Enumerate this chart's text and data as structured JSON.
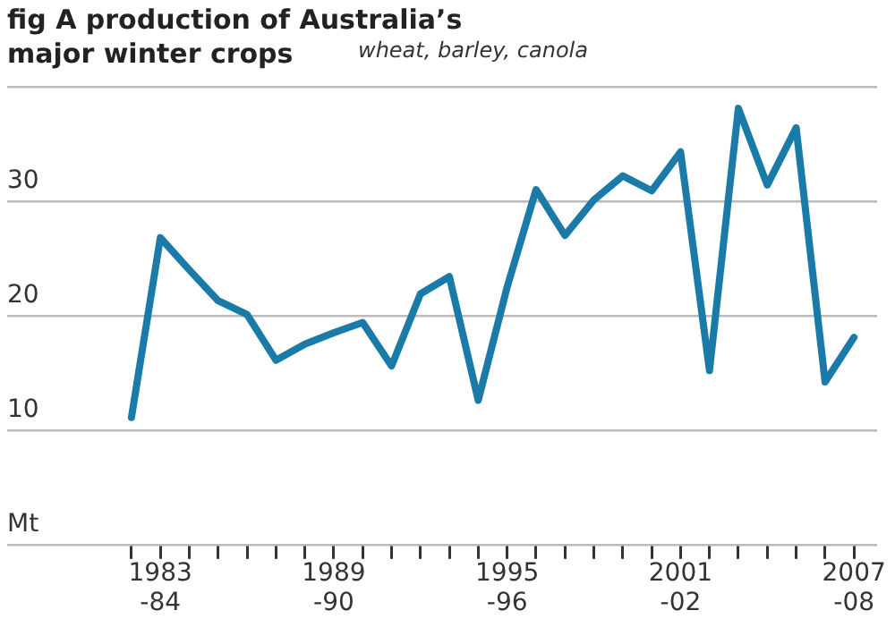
{
  "chart_data": {
    "type": "line",
    "title": "fig A production of Australia’s major winter crops",
    "subtitle": "wheat, barley, canola",
    "categories": [
      null,
      "1983\n-84",
      null,
      null,
      null,
      null,
      null,
      "1989\n-90",
      null,
      null,
      null,
      null,
      null,
      "1995\n-96",
      null,
      null,
      null,
      null,
      null,
      "2001\n-02",
      null,
      null,
      null,
      null,
      null,
      "2007\n-08"
    ],
    "series": [
      {
        "color": "#1a7aa8",
        "values": [
          11.1,
          26.8,
          24,
          21.3,
          20.1,
          16.1,
          17.5,
          18.5,
          19.4,
          15.6,
          21.9,
          23.4,
          12.6,
          22.5,
          31,
          27,
          30.1,
          32.2,
          30.9,
          34.3,
          15.2,
          38.1,
          31.4,
          36.4,
          14.2,
          18.1
        ]
      }
    ],
    "ylim": [
      0,
      40
    ],
    "yticks": [
      {
        "value": 0,
        "label": "Mt"
      },
      10,
      20,
      30,
      {
        "value": 40,
        "label": null
      }
    ],
    "grid": "y",
    "legend": false,
    "marker": "none",
    "line_style": "solid"
  }
}
